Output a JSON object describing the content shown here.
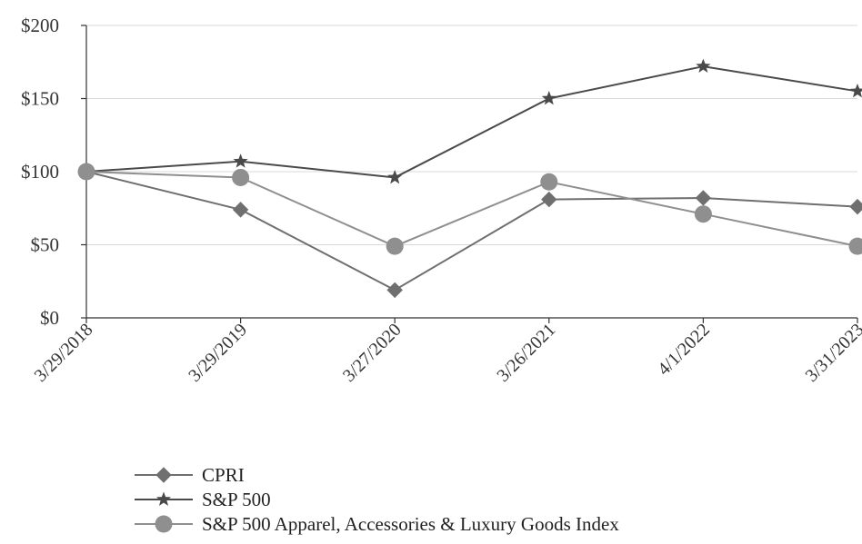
{
  "chart_data": {
    "type": "line",
    "title": "",
    "xlabel": "",
    "ylabel": "",
    "categories": [
      "3/29/2018",
      "3/29/2019",
      "3/27/2020",
      "3/26/2021",
      "4/1/2022",
      "3/31/2023"
    ],
    "ylim": [
      0,
      200
    ],
    "yticks": [
      0,
      50,
      100,
      150,
      200
    ],
    "ytick_labels": [
      "$0",
      "$50",
      "$100",
      "$150",
      "$200"
    ],
    "grid": true,
    "legend_position": "bottom",
    "series": [
      {
        "name": "CPRI",
        "marker": "diamond",
        "color": "#6f6f6f",
        "values": [
          100,
          74,
          19,
          81,
          82,
          76
        ]
      },
      {
        "name": "S&P 500",
        "marker": "star",
        "color": "#4a4a4a",
        "values": [
          100,
          107,
          96,
          150,
          172,
          155
        ]
      },
      {
        "name": "S&P 500 Apparel, Accessories & Luxury Goods Index",
        "marker": "circle",
        "color": "#8f8f8f",
        "values": [
          100,
          96,
          49,
          93,
          71,
          49
        ]
      }
    ]
  }
}
